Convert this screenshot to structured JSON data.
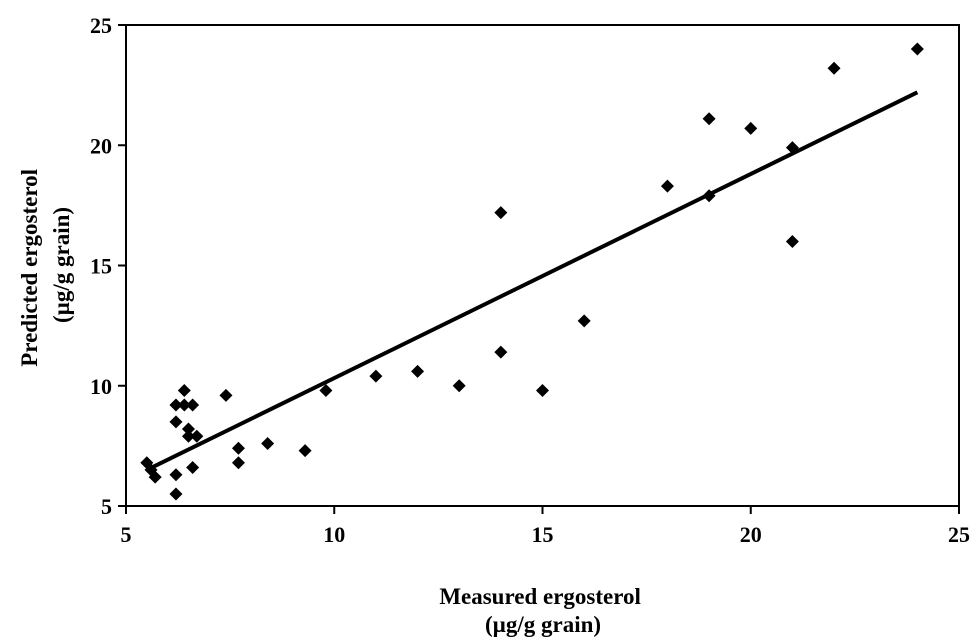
{
  "chart_data": {
    "type": "scatter",
    "xlabel_lines": [
      "Measured ergosterol",
      "(µg/g grain)"
    ],
    "ylabel_lines": [
      "Predicted ergosterol",
      "(µg/g grain)"
    ],
    "xlim": [
      5,
      25
    ],
    "ylim": [
      5,
      25
    ],
    "xticks": [
      "5",
      "10",
      "15",
      "20",
      "25"
    ],
    "yticks": [
      "5",
      "10",
      "15",
      "20",
      "25"
    ],
    "grid": false,
    "legend": "none",
    "marker": "diamond",
    "marker_color": "#000000",
    "points": [
      {
        "x": 5.5,
        "y": 6.8
      },
      {
        "x": 5.6,
        "y": 6.5
      },
      {
        "x": 5.7,
        "y": 6.2
      },
      {
        "x": 6.2,
        "y": 5.5
      },
      {
        "x": 6.2,
        "y": 6.3
      },
      {
        "x": 6.2,
        "y": 8.5
      },
      {
        "x": 6.2,
        "y": 9.2
      },
      {
        "x": 6.4,
        "y": 9.2
      },
      {
        "x": 6.4,
        "y": 9.8
      },
      {
        "x": 6.5,
        "y": 8.2
      },
      {
        "x": 6.5,
        "y": 7.9
      },
      {
        "x": 6.6,
        "y": 9.2
      },
      {
        "x": 6.6,
        "y": 6.6
      },
      {
        "x": 6.7,
        "y": 7.9
      },
      {
        "x": 7.4,
        "y": 9.6
      },
      {
        "x": 7.7,
        "y": 7.4
      },
      {
        "x": 7.7,
        "y": 6.8
      },
      {
        "x": 8.4,
        "y": 7.6
      },
      {
        "x": 9.3,
        "y": 7.3
      },
      {
        "x": 9.8,
        "y": 9.8
      },
      {
        "x": 11.0,
        "y": 10.4
      },
      {
        "x": 12.0,
        "y": 10.6
      },
      {
        "x": 13.0,
        "y": 10.0
      },
      {
        "x": 14.0,
        "y": 17.2
      },
      {
        "x": 14.0,
        "y": 11.4
      },
      {
        "x": 15.0,
        "y": 9.8
      },
      {
        "x": 16.0,
        "y": 12.7
      },
      {
        "x": 18.0,
        "y": 18.3
      },
      {
        "x": 19.0,
        "y": 21.1
      },
      {
        "x": 19.0,
        "y": 17.9
      },
      {
        "x": 20.0,
        "y": 20.7
      },
      {
        "x": 21.0,
        "y": 19.9
      },
      {
        "x": 21.0,
        "y": 16.0
      },
      {
        "x": 22.0,
        "y": 23.2
      },
      {
        "x": 24.0,
        "y": 24.0
      }
    ],
    "trendline": {
      "x": [
        5.5,
        24.0
      ],
      "y": [
        6.5,
        22.2
      ]
    }
  }
}
